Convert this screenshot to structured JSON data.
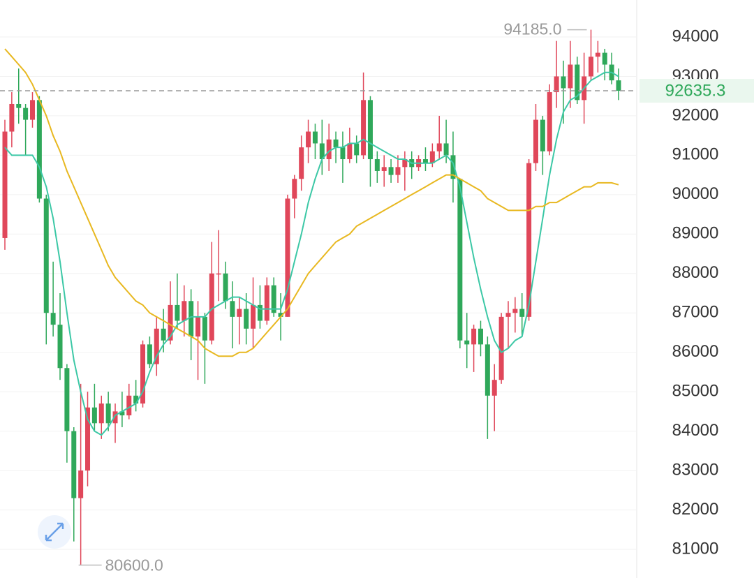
{
  "chart_data": {
    "type": "candlestick",
    "ohlc": [
      [
        88900,
        91900,
        88600,
        91600
      ],
      [
        91600,
        92600,
        91200,
        92300
      ],
      [
        92300,
        93200,
        91800,
        92200
      ],
      [
        92200,
        92300,
        91000,
        91900
      ],
      [
        91900,
        92600,
        91700,
        92400
      ],
      [
        92400,
        92500,
        89800,
        89900
      ],
      [
        89900,
        90000,
        86200,
        87000
      ],
      [
        87000,
        88300,
        86400,
        86700
      ],
      [
        86700,
        87500,
        85300,
        85600
      ],
      [
        85600,
        85700,
        83200,
        84000
      ],
      [
        84000,
        84100,
        81200,
        82300
      ],
      [
        82300,
        85200,
        80600,
        83000
      ],
      [
        83000,
        85000,
        82600,
        84600
      ],
      [
        84600,
        85200,
        84000,
        84200
      ],
      [
        84200,
        84900,
        83800,
        84700
      ],
      [
        84700,
        85000,
        84000,
        84200
      ],
      [
        84200,
        84700,
        83700,
        84500
      ],
      [
        84500,
        85000,
        84100,
        84400
      ],
      [
        84400,
        85200,
        84300,
        84900
      ],
      [
        84900,
        85300,
        84500,
        84700
      ],
      [
        84700,
        86300,
        84600,
        86200
      ],
      [
        86200,
        86400,
        85600,
        85700
      ],
      [
        85700,
        86900,
        85400,
        86600
      ],
      [
        86600,
        87100,
        86000,
        86300
      ],
      [
        86300,
        87800,
        86200,
        87200
      ],
      [
        87200,
        88000,
        86600,
        86800
      ],
      [
        86800,
        87700,
        86400,
        87300
      ],
      [
        87300,
        87600,
        85800,
        86400
      ],
      [
        86400,
        87300,
        85300,
        86900
      ],
      [
        86900,
        87000,
        85200,
        86300
      ],
      [
        86300,
        88800,
        86200,
        88000
      ],
      [
        88000,
        89100,
        87300,
        88000
      ],
      [
        88000,
        88300,
        87100,
        87300
      ],
      [
        87300,
        87800,
        86100,
        86900
      ],
      [
        86900,
        87400,
        86200,
        87100
      ],
      [
        87100,
        87500,
        86200,
        86600
      ],
      [
        86600,
        87900,
        86100,
        87200
      ],
      [
        87200,
        87700,
        86600,
        86800
      ],
      [
        86800,
        87900,
        86700,
        87700
      ],
      [
        87700,
        87900,
        86900,
        87000
      ],
      [
        87000,
        87500,
        86300,
        86900
      ],
      [
        86900,
        90000,
        86900,
        89900
      ],
      [
        89900,
        90500,
        89400,
        90400
      ],
      [
        90400,
        91500,
        90100,
        91200
      ],
      [
        91200,
        91900,
        90800,
        91600
      ],
      [
        91600,
        91800,
        90900,
        91300
      ],
      [
        91300,
        91900,
        90500,
        90900
      ],
      [
        90900,
        91800,
        90600,
        91400
      ],
      [
        91400,
        91600,
        90800,
        91200
      ],
      [
        91200,
        91600,
        90300,
        90900
      ],
      [
        90900,
        91700,
        90800,
        91300
      ],
      [
        91300,
        91500,
        90800,
        91000
      ],
      [
        91000,
        93100,
        90900,
        92400
      ],
      [
        92400,
        92500,
        90200,
        90900
      ],
      [
        90900,
        91100,
        90300,
        90600
      ],
      [
        90600,
        91000,
        90200,
        90700
      ],
      [
        90700,
        90900,
        90300,
        90500
      ],
      [
        90500,
        91000,
        90300,
        90700
      ],
      [
        90700,
        91100,
        90100,
        90900
      ],
      [
        90900,
        91100,
        90400,
        90700
      ],
      [
        90700,
        91000,
        90600,
        90900
      ],
      [
        90900,
        91200,
        90600,
        90800
      ],
      [
        90800,
        91300,
        90700,
        91100
      ],
      [
        91100,
        92000,
        90900,
        91300
      ],
      [
        91300,
        91900,
        90800,
        91000
      ],
      [
        91000,
        91600,
        89800,
        90400
      ],
      [
        90400,
        90400,
        86100,
        86300
      ],
      [
        86300,
        87000,
        85600,
        86200
      ],
      [
        86200,
        86700,
        85500,
        86600
      ],
      [
        86600,
        86800,
        85900,
        86200
      ],
      [
        86200,
        86400,
        83800,
        84900
      ],
      [
        84900,
        85700,
        84000,
        85300
      ],
      [
        85300,
        87000,
        85200,
        86900
      ],
      [
        86900,
        87300,
        86100,
        87000
      ],
      [
        87000,
        87400,
        86500,
        87100
      ],
      [
        87100,
        87500,
        86400,
        86900
      ],
      [
        86900,
        90900,
        86800,
        90800
      ],
      [
        90800,
        92300,
        90600,
        91900
      ],
      [
        91900,
        92000,
        90500,
        91100
      ],
      [
        91100,
        92800,
        91000,
        92600
      ],
      [
        92600,
        93900,
        92200,
        93000
      ],
      [
        93000,
        93400,
        91800,
        92700
      ],
      [
        92700,
        93900,
        92200,
        93300
      ],
      [
        93300,
        93500,
        92300,
        92400
      ],
      [
        92400,
        93600,
        91800,
        93000
      ],
      [
        93000,
        94185,
        92900,
        93500
      ],
      [
        93500,
        93900,
        93100,
        93600
      ],
      [
        93600,
        93700,
        92900,
        93300
      ],
      [
        93300,
        93600,
        92800,
        92900
      ],
      [
        92900,
        93200,
        92400,
        92635.3
      ]
    ],
    "up_color": "#e0475a",
    "down_color": "#2fa85a",
    "ma_lines": [
      {
        "color": "#3cc8a6",
        "values": [
          91200,
          91000,
          91000,
          91000,
          91000,
          90700,
          90200,
          89400,
          88300,
          87000,
          85800,
          85000,
          84300,
          84000,
          83900,
          84100,
          84400,
          84500,
          84600,
          84700,
          85000,
          85500,
          85900,
          86200,
          86400,
          86700,
          86800,
          86900,
          86900,
          86900,
          87100,
          87200,
          87300,
          87400,
          87400,
          87300,
          87200,
          87100,
          87100,
          87100,
          87100,
          87600,
          88300,
          89000,
          89800,
          90400,
          90900,
          91100,
          91200,
          91200,
          91300,
          91300,
          91400,
          91300,
          91200,
          91100,
          91000,
          90900,
          90900,
          90800,
          90800,
          90800,
          90800,
          90900,
          91000,
          90800,
          90200,
          89300,
          88400,
          87600,
          86900,
          86300,
          86000,
          86100,
          86300,
          86400,
          87200,
          88300,
          89400,
          90500,
          91400,
          92100,
          92400,
          92500,
          92700,
          92900,
          93000,
          93100,
          93100,
          93000
        ]
      },
      {
        "color": "#e8b820",
        "values": [
          93700,
          93500,
          93300,
          93100,
          92800,
          92400,
          92000,
          91500,
          91100,
          90600,
          90200,
          89800,
          89400,
          89000,
          88600,
          88200,
          87900,
          87700,
          87500,
          87300,
          87200,
          87000,
          86900,
          86800,
          86700,
          86600,
          86500,
          86400,
          86300,
          86100,
          86000,
          85900,
          85900,
          85900,
          86000,
          86000,
          86100,
          86300,
          86500,
          86700,
          86900,
          87100,
          87400,
          87700,
          88000,
          88200,
          88400,
          88600,
          88800,
          88900,
          89000,
          89200,
          89300,
          89400,
          89500,
          89600,
          89700,
          89800,
          89900,
          90000,
          90100,
          90200,
          90300,
          90400,
          90500,
          90500,
          90400,
          90300,
          90200,
          90100,
          89900,
          89800,
          89700,
          89600,
          89600,
          89600,
          89600,
          89700,
          89700,
          89800,
          89800,
          89900,
          90000,
          90100,
          90200,
          90200,
          90300,
          90300,
          90300,
          90250
        ]
      }
    ],
    "ylim": [
      80273,
      94939
    ],
    "yticks": [
      81000,
      82000,
      83000,
      84000,
      85000,
      86000,
      87000,
      88000,
      89000,
      90000,
      91000,
      92000,
      93000,
      94000
    ],
    "grid": true,
    "last_price": 92635.3,
    "high_label": {
      "value": 94185,
      "label": "94185.0"
    },
    "low_label": {
      "value": 80600,
      "label": "80600.0"
    }
  }
}
